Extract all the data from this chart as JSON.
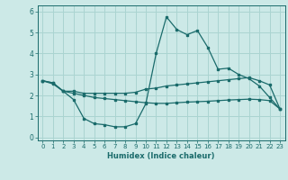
{
  "xlabel": "Humidex (Indice chaleur)",
  "background_color": "#cce9e7",
  "grid_color": "#aad4d1",
  "line_color": "#1a6b6b",
  "x_ticks": [
    0,
    1,
    2,
    3,
    4,
    5,
    6,
    7,
    8,
    9,
    10,
    11,
    12,
    13,
    14,
    15,
    16,
    17,
    18,
    19,
    20,
    21,
    22,
    23
  ],
  "y_ticks": [
    0,
    1,
    2,
    3,
    4,
    5,
    6
  ],
  "ylim": [
    -0.15,
    6.3
  ],
  "xlim": [
    -0.5,
    23.5
  ],
  "line1_x": [
    0,
    1,
    2,
    3,
    4,
    5,
    6,
    7,
    8,
    9,
    10,
    11,
    12,
    13,
    14,
    15,
    16,
    17,
    18,
    19,
    20,
    21,
    22,
    23
  ],
  "line1_y": [
    2.7,
    2.6,
    2.2,
    1.8,
    0.9,
    0.65,
    0.6,
    0.5,
    0.5,
    0.65,
    1.6,
    4.0,
    5.75,
    5.15,
    4.9,
    5.1,
    4.3,
    3.25,
    3.3,
    3.0,
    2.8,
    2.45,
    1.9,
    1.35
  ],
  "line2_x": [
    0,
    1,
    2,
    3,
    4,
    5,
    6,
    7,
    8,
    9,
    10,
    11,
    12,
    13,
    14,
    15,
    16,
    17,
    18,
    19,
    20,
    21,
    22,
    23
  ],
  "line2_y": [
    2.7,
    2.6,
    2.2,
    2.2,
    2.1,
    2.1,
    2.1,
    2.1,
    2.1,
    2.15,
    2.3,
    2.35,
    2.45,
    2.5,
    2.55,
    2.6,
    2.65,
    2.7,
    2.75,
    2.8,
    2.85,
    2.7,
    2.5,
    1.35
  ],
  "line3_x": [
    0,
    1,
    2,
    3,
    4,
    5,
    6,
    7,
    8,
    9,
    10,
    11,
    12,
    13,
    14,
    15,
    16,
    17,
    18,
    19,
    20,
    21,
    22,
    23
  ],
  "line3_y": [
    2.7,
    2.55,
    2.2,
    2.1,
    2.0,
    1.9,
    1.85,
    1.8,
    1.75,
    1.7,
    1.65,
    1.62,
    1.62,
    1.65,
    1.68,
    1.7,
    1.72,
    1.75,
    1.78,
    1.8,
    1.82,
    1.8,
    1.75,
    1.35
  ]
}
